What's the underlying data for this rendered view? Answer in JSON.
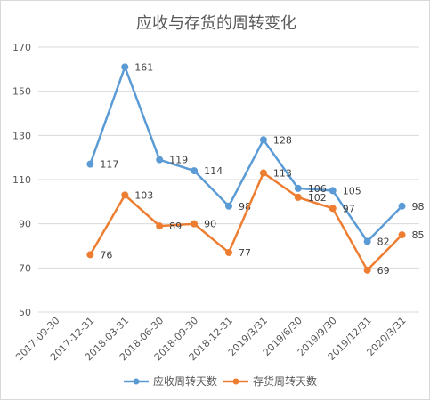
{
  "chart_data": {
    "type": "line",
    "title": "应收与存货的周转变化",
    "categories": [
      "2017-09-30",
      "2017-12-31",
      "2018-03-31",
      "2018-06-30",
      "2018-09-30",
      "2018-12-31",
      "2019/3/31",
      "2019/6/30",
      "2019/9/30",
      "2019/12/31",
      "2020/3/31"
    ],
    "ylim": [
      50,
      170
    ],
    "yticks": [
      50,
      70,
      90,
      110,
      130,
      150,
      170
    ],
    "grid": true,
    "legend_position": "bottom",
    "series": [
      {
        "name": "应收周转天数",
        "color": "#5b9bd5",
        "values": [
          null,
          117,
          161,
          119,
          114,
          98,
          128,
          106,
          105,
          82,
          98
        ]
      },
      {
        "name": "存货周转天数",
        "color": "#ed7d31",
        "values": [
          null,
          76,
          103,
          89,
          90,
          77,
          113,
          102,
          97,
          69,
          85
        ]
      }
    ]
  }
}
